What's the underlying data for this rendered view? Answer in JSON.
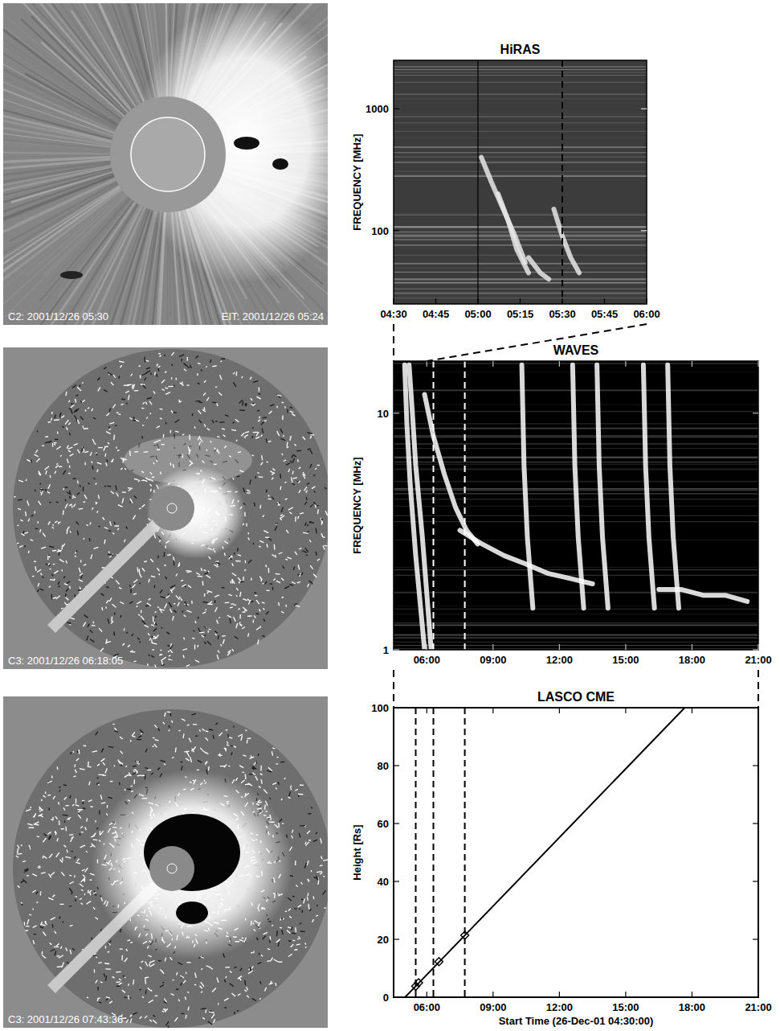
{
  "images": [
    {
      "caption_left": "C2: 2001/12/26 05:30",
      "caption_right": "EIT: 2001/12/26 05:24"
    },
    {
      "caption_left": "C3: 2001/12/26 06:18:05"
    },
    {
      "caption_left": "C3: 2001/12/26 07:43:36"
    }
  ],
  "chart_data": [
    {
      "type": "spectrogram",
      "title": "HiRAS",
      "y_label": "FREQUENCY [MHz]",
      "log": "y",
      "xlim": [
        4.5,
        6.0
      ],
      "ylim": [
        25,
        2500
      ],
      "xticks": [
        {
          "value": 4.5,
          "label": "04:30"
        },
        {
          "value": 4.75,
          "label": "04:45"
        },
        {
          "value": 5.0,
          "label": "05:00"
        },
        {
          "value": 5.25,
          "label": "05:15"
        },
        {
          "value": 5.5,
          "label": "05:30"
        },
        {
          "value": 5.75,
          "label": "05:45"
        },
        {
          "value": 6.0,
          "label": "06:00"
        }
      ],
      "yticks": [
        100,
        1000
      ],
      "vlines": [
        {
          "x": 5.0,
          "line_style": "solid"
        },
        {
          "x": 5.5,
          "line_style": "dashed"
        }
      ],
      "series": [
        {
          "color": "#e6e6e6",
          "x": [
            5.02,
            5.08,
            5.15,
            5.22,
            5.28
          ],
          "values": [
            400,
            250,
            150,
            90,
            55
          ]
        },
        {
          "color": "#e6e6e6",
          "x": [
            5.12,
            5.18,
            5.23,
            5.3
          ],
          "values": [
            200,
            120,
            70,
            45
          ]
        },
        {
          "color": "#e6e6e6",
          "x": [
            5.3,
            5.37,
            5.42
          ],
          "values": [
            60,
            45,
            40
          ]
        },
        {
          "color": "#e6e6e6",
          "x": [
            5.45,
            5.5,
            5.55,
            5.6
          ],
          "values": [
            150,
            90,
            60,
            45
          ]
        }
      ]
    },
    {
      "type": "spectrogram",
      "title": "WAVES",
      "y_label": "FREQUENCY [MHz]",
      "log": "y",
      "xlim": [
        4.5,
        21
      ],
      "ylim": [
        1,
        16.6
      ],
      "xticks": [
        {
          "value": 6,
          "label": "06:00"
        },
        {
          "value": 9,
          "label": "09:00"
        },
        {
          "value": 12,
          "label": "12:00"
        },
        {
          "value": 15,
          "label": "15:00"
        },
        {
          "value": 18,
          "label": "18:00"
        },
        {
          "value": 21,
          "label": "21:00"
        }
      ],
      "yticks": [
        1,
        10
      ],
      "vlines": [
        {
          "x": 6.3,
          "line_style": "dashed"
        },
        {
          "x": 7.72,
          "line_style": "dashed"
        }
      ],
      "series": [
        {
          "color": "#ffffff",
          "x": [
            5.2,
            5.35,
            5.5,
            5.8,
            6.2
          ],
          "values": [
            16,
            10,
            6,
            3,
            1
          ]
        },
        {
          "color": "#ffffff",
          "x": [
            5.0,
            5.1,
            5.25,
            5.5,
            5.9
          ],
          "values": [
            16,
            9,
            5,
            2.5,
            1
          ]
        },
        {
          "color": "#ffffff",
          "x": [
            5.9,
            6.3,
            6.8,
            7.3,
            7.8,
            8.3
          ],
          "values": [
            12,
            8,
            5.5,
            4,
            3.2,
            2.8
          ]
        },
        {
          "color": "#ffffff",
          "x": [
            7.5,
            8.5,
            9.5,
            10.5,
            11.5,
            12.5,
            13.5
          ],
          "values": [
            3.2,
            2.8,
            2.5,
            2.3,
            2.1,
            2.0,
            1.9
          ]
        },
        {
          "color": "#ffffff",
          "x": [
            16.5,
            17.5,
            18.5,
            19.5,
            20.5
          ],
          "values": [
            1.8,
            1.8,
            1.7,
            1.7,
            1.6
          ]
        },
        {
          "color": "#ffffff",
          "x": [
            10.3,
            10.4,
            10.55,
            10.8
          ],
          "values": [
            16,
            6,
            3,
            1.5
          ]
        },
        {
          "color": "#ffffff",
          "x": [
            12.6,
            12.7,
            12.85,
            13.1
          ],
          "values": [
            16,
            6,
            3,
            1.5
          ]
        },
        {
          "color": "#ffffff",
          "x": [
            13.7,
            13.8,
            13.95,
            14.2
          ],
          "values": [
            16,
            6,
            3,
            1.5
          ]
        },
        {
          "color": "#ffffff",
          "x": [
            15.8,
            15.9,
            16.05,
            16.3
          ],
          "values": [
            16,
            6,
            3,
            1.5
          ]
        },
        {
          "color": "#ffffff",
          "x": [
            16.9,
            17.0,
            17.15,
            17.4
          ],
          "values": [
            16,
            6,
            3,
            1.5
          ]
        }
      ]
    },
    {
      "type": "line",
      "title": "LASCO CME",
      "y_label": "Height [Rs]",
      "x_label": "Start Time (26-Dec-01 04:30:00)",
      "xlim": [
        4.5,
        21
      ],
      "ylim": [
        0,
        100
      ],
      "xticks": [
        {
          "value": 6,
          "label": "06:00"
        },
        {
          "value": 9,
          "label": "09:00"
        },
        {
          "value": 12,
          "label": "12:00"
        },
        {
          "value": 15,
          "label": "15:00"
        },
        {
          "value": 18,
          "label": "18:00"
        },
        {
          "value": 21,
          "label": "21:00"
        }
      ],
      "yticks": [
        0,
        20,
        40,
        60,
        80,
        100
      ],
      "vlines": [
        {
          "x": 5.5,
          "line_style": "dashed"
        },
        {
          "x": 6.3,
          "line_style": "dashed"
        },
        {
          "x": 7.72,
          "line_style": "dashed"
        }
      ],
      "series": [
        {
          "type": "line",
          "color": "#000000",
          "x": [
            5.02,
            17.67
          ],
          "values": [
            0,
            100
          ]
        },
        {
          "type": "scatter",
          "marker": "diamond",
          "color": "#000000",
          "x": [
            5.5,
            5.63,
            6.55,
            7.72
          ],
          "values": [
            3.8,
            5.0,
            12.3,
            21.4
          ]
        }
      ]
    }
  ]
}
